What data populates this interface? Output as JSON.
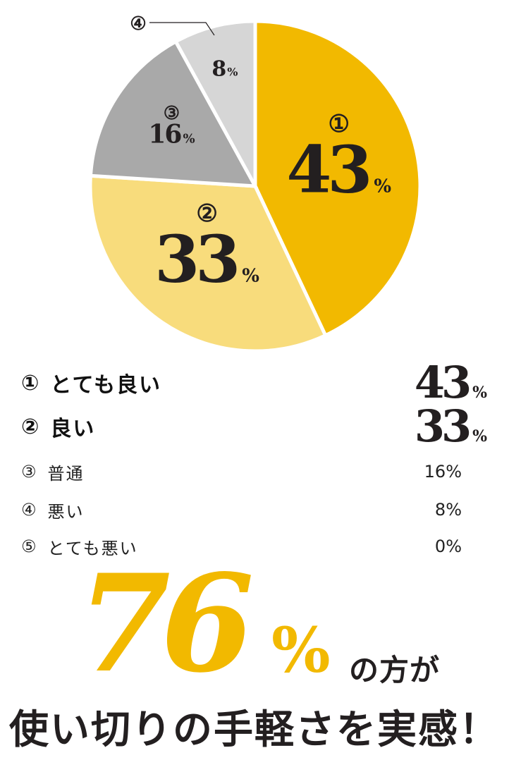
{
  "chart_data": {
    "type": "pie",
    "categories": [
      "とても良い",
      "良い",
      "普通",
      "悪い",
      "とても悪い"
    ],
    "values": [
      43,
      33,
      16,
      8,
      0
    ],
    "markers": [
      "①",
      "②",
      "③",
      "④",
      "⑤"
    ],
    "value_labels": [
      "43",
      "33",
      "16",
      "8",
      "0"
    ],
    "unit": "%",
    "colors": [
      "#f2b900",
      "#f8dc7c",
      "#a9a9a9",
      "#d6d6d6",
      "#eeeeee"
    ]
  },
  "legend": [
    {
      "marker": "①",
      "label": "とても良い",
      "value": "43",
      "unit": "%"
    },
    {
      "marker": "②",
      "label": "良い",
      "value": "33",
      "unit": "%"
    },
    {
      "marker": "③",
      "label": "普通",
      "value": "16%"
    },
    {
      "marker": "④",
      "label": "悪い",
      "value": "8%"
    },
    {
      "marker": "⑤",
      "label": "とても悪い",
      "value": "0%"
    }
  ],
  "headline": {
    "number": "76",
    "unit": "%",
    "suffix": "の方が",
    "tagline": "使い切りの手軽さを実感！"
  }
}
